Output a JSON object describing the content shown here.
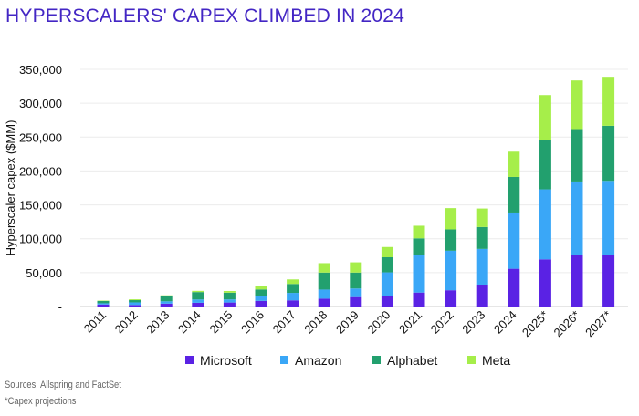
{
  "chart_data": {
    "type": "bar",
    "stacked": true,
    "title": "HYPERSCALERS' CAPEX CLIMBED IN 2024",
    "xlabel": "",
    "ylabel": "Hyperscaler capex ($MM)",
    "ylim": [
      0,
      350000
    ],
    "yticks": [
      0,
      50000,
      100000,
      150000,
      200000,
      250000,
      300000,
      350000
    ],
    "ytick_labels": [
      "-",
      "50,000",
      "100,000",
      "150,000",
      "200,000",
      "250,000",
      "300,000",
      "350,000"
    ],
    "grid": true,
    "legend_position": "bottom",
    "categories": [
      "2011",
      "2012",
      "2013",
      "2014",
      "2015",
      "2016",
      "2017",
      "2018",
      "2019",
      "2020",
      "2021",
      "2022",
      "2023",
      "2024",
      "2025*",
      "2026*",
      "2027*"
    ],
    "series": [
      {
        "name": "Microsoft",
        "color": "#5a22e4",
        "values": [
          3000,
          2300,
          4300,
          5500,
          5900,
          8300,
          9100,
          11600,
          13900,
          15400,
          20600,
          24000,
          32300,
          55700,
          69600,
          76300,
          75400
        ]
      },
      {
        "name": "Amazon",
        "color": "#3aa7f7",
        "values": [
          1800,
          3800,
          3400,
          4900,
          4600,
          6700,
          11000,
          13400,
          12700,
          35000,
          55400,
          58300,
          52700,
          83000,
          103300,
          108200,
          110000
        ]
      },
      {
        "name": "Alphabet",
        "color": "#22a06e",
        "values": [
          3400,
          3300,
          7400,
          10900,
          9900,
          10200,
          13200,
          25100,
          23500,
          22300,
          24600,
          31500,
          32300,
          52500,
          72700,
          77300,
          81300
        ]
      },
      {
        "name": "Meta",
        "color": "#a6ee4a",
        "values": [
          600,
          1200,
          1400,
          1800,
          2500,
          4500,
          6700,
          13900,
          15100,
          15100,
          18600,
          31400,
          27300,
          37300,
          66400,
          71800,
          72300
        ]
      }
    ]
  },
  "notes": {
    "sources": "Sources: Allspring and FactSet",
    "footnote": "*Capex projections"
  }
}
